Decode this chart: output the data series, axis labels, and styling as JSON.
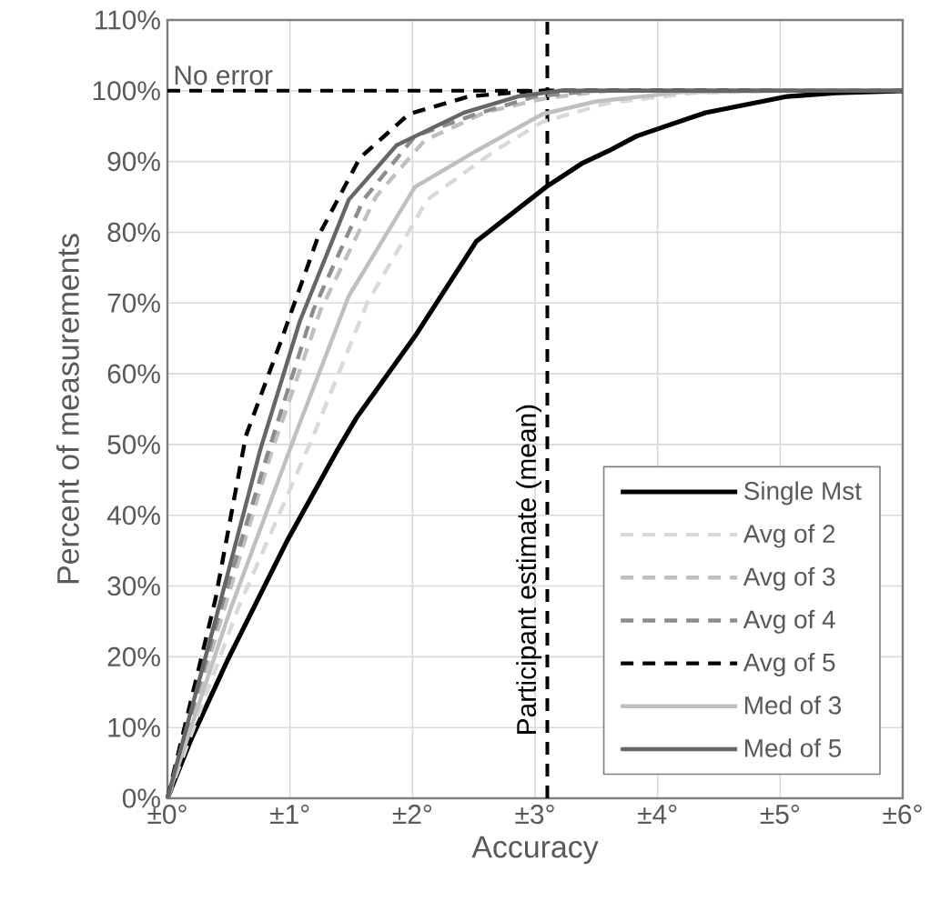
{
  "chart_data": {
    "type": "line",
    "xlabel": "Accuracy",
    "ylabel": "Percent of measurements",
    "xlim": [
      0,
      6
    ],
    "ylim": [
      0,
      110
    ],
    "xticks": [
      {
        "value": 0,
        "label": "±0°"
      },
      {
        "value": 1,
        "label": "±1°"
      },
      {
        "value": 2,
        "label": "±2°"
      },
      {
        "value": 3,
        "label": "±3°"
      },
      {
        "value": 4,
        "label": "±4°"
      },
      {
        "value": 5,
        "label": "±5°"
      },
      {
        "value": 6,
        "label": "±6°"
      }
    ],
    "yticks": [
      {
        "value": 0,
        "label": "0%"
      },
      {
        "value": 10,
        "label": "10%"
      },
      {
        "value": 20,
        "label": "20%"
      },
      {
        "value": 30,
        "label": "30%"
      },
      {
        "value": 40,
        "label": "40%"
      },
      {
        "value": 50,
        "label": "50%"
      },
      {
        "value": 60,
        "label": "60%"
      },
      {
        "value": 70,
        "label": "70%"
      },
      {
        "value": 80,
        "label": "80%"
      },
      {
        "value": 90,
        "label": "90%"
      },
      {
        "value": 100,
        "label": "100%"
      },
      {
        "value": 110,
        "label": "110%"
      }
    ],
    "grid": true,
    "legend": "bottom right",
    "series": [
      {
        "name": "Single Mst",
        "color": "#000000",
        "line_style": "solid",
        "x": [
          0,
          0.19,
          0.49,
          0.98,
          1.38,
          1.54,
          2.02,
          2.52,
          3.09,
          3.38,
          3.6,
          3.83,
          4.39,
          5.06,
          5.46,
          6
        ],
        "values": [
          0,
          8.2,
          19.5,
          36.5,
          49,
          53.7,
          65.3,
          78.7,
          86.4,
          89.7,
          91.5,
          93.6,
          96.9,
          99.2,
          99.7,
          100
        ]
      },
      {
        "name": "Avg of 2",
        "color": "#d9d9d9",
        "line_style": "dashed",
        "x": [
          0,
          0.58,
          1.19,
          1.63,
          2.12,
          2.67,
          3.06,
          3.6,
          4.3,
          5,
          6
        ],
        "values": [
          0,
          27,
          51.2,
          70,
          84.6,
          91.5,
          95.6,
          98.3,
          99.7,
          100,
          100
        ]
      },
      {
        "name": "Avg of 3",
        "color": "#bfbfbf",
        "line_style": "dashed",
        "x": [
          0,
          0.45,
          0.85,
          1.25,
          1.7,
          2.1,
          2.6,
          3.1,
          3.6,
          6
        ],
        "values": [
          0,
          26,
          49,
          69,
          85,
          93,
          97,
          99,
          100,
          100
        ]
      },
      {
        "name": "Avg of 4",
        "color": "#8c8c8c",
        "line_style": "dashed",
        "x": [
          0,
          0.43,
          0.83,
          1.19,
          1.6,
          2.02,
          2.52,
          3.0,
          3.5,
          6
        ],
        "values": [
          0,
          26.5,
          49.4,
          69,
          84.6,
          93.6,
          96.7,
          99.2,
          100,
          100
        ]
      },
      {
        "name": "Avg of 5",
        "color": "#000000",
        "line_style": "dashed",
        "x": [
          0,
          0.39,
          0.64,
          0.93,
          1.23,
          1.57,
          1.97,
          2.46,
          3.0,
          6
        ],
        "values": [
          0,
          28,
          51.2,
          64.8,
          79.4,
          90.5,
          96.7,
          99.2,
          100,
          100
        ]
      },
      {
        "name": "Med of 3",
        "color": "#bfbfbf",
        "line_style": "solid",
        "x": [
          0,
          0.52,
          1.04,
          1.48,
          2.02,
          2.52,
          3.06,
          3.5,
          4.2,
          5,
          6
        ],
        "values": [
          0,
          27,
          51.2,
          71,
          86.4,
          91.5,
          96.7,
          98.5,
          99.8,
          100,
          100
        ]
      },
      {
        "name": "Med of 5",
        "color": "#666666",
        "line_style": "solid",
        "x": [
          0,
          0.42,
          0.76,
          1.08,
          1.48,
          1.87,
          2.42,
          2.86,
          3.2,
          6
        ],
        "values": [
          0,
          27,
          49.4,
          67.4,
          84.6,
          92.3,
          96.9,
          99.2,
          100,
          100
        ]
      }
    ],
    "ref_lines": [
      {
        "axis": "y",
        "value": 100,
        "label": "No error",
        "color": "#000000",
        "line_style": "dashed"
      },
      {
        "axis": "x",
        "value": 3.1,
        "label": "Participant estimate (mean)",
        "color": "#000000",
        "line_style": "dashed"
      }
    ]
  }
}
